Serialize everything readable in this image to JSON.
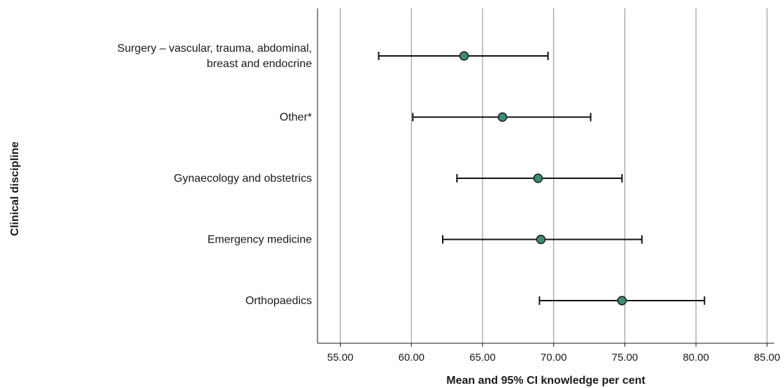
{
  "chart_data": {
    "type": "scatter",
    "subtype": "forest-plot-horizontal",
    "title": "",
    "xlabel": "Mean and 95% CI knowledge per cent",
    "ylabel": "Clinical discipline",
    "xlim": [
      53.4,
      85.5
    ],
    "xticks": [
      "55.00",
      "60.00",
      "65.00",
      "70.00",
      "75.00",
      "80.00",
      "85.00"
    ],
    "xtick_values": [
      55,
      60,
      65,
      70,
      75,
      80,
      85
    ],
    "vertical_grid": true,
    "point_color": "#3d8c7a",
    "categories": [
      {
        "label_lines": [
          "Surgery – vascular, trauma, abdominal,",
          "breast and endocrine"
        ],
        "mean": 63.7,
        "lower": 57.7,
        "upper": 69.6
      },
      {
        "label_lines": [
          "Other*"
        ],
        "mean": 66.4,
        "lower": 60.1,
        "upper": 72.6
      },
      {
        "label_lines": [
          "Gynaecology and obstetrics"
        ],
        "mean": 68.9,
        "lower": 63.2,
        "upper": 74.8
      },
      {
        "label_lines": [
          "Emergency medicine"
        ],
        "mean": 69.1,
        "lower": 62.2,
        "upper": 76.2
      },
      {
        "label_lines": [
          "Orthopaedics"
        ],
        "mean": 74.8,
        "lower": 69.0,
        "upper": 80.6
      }
    ]
  }
}
